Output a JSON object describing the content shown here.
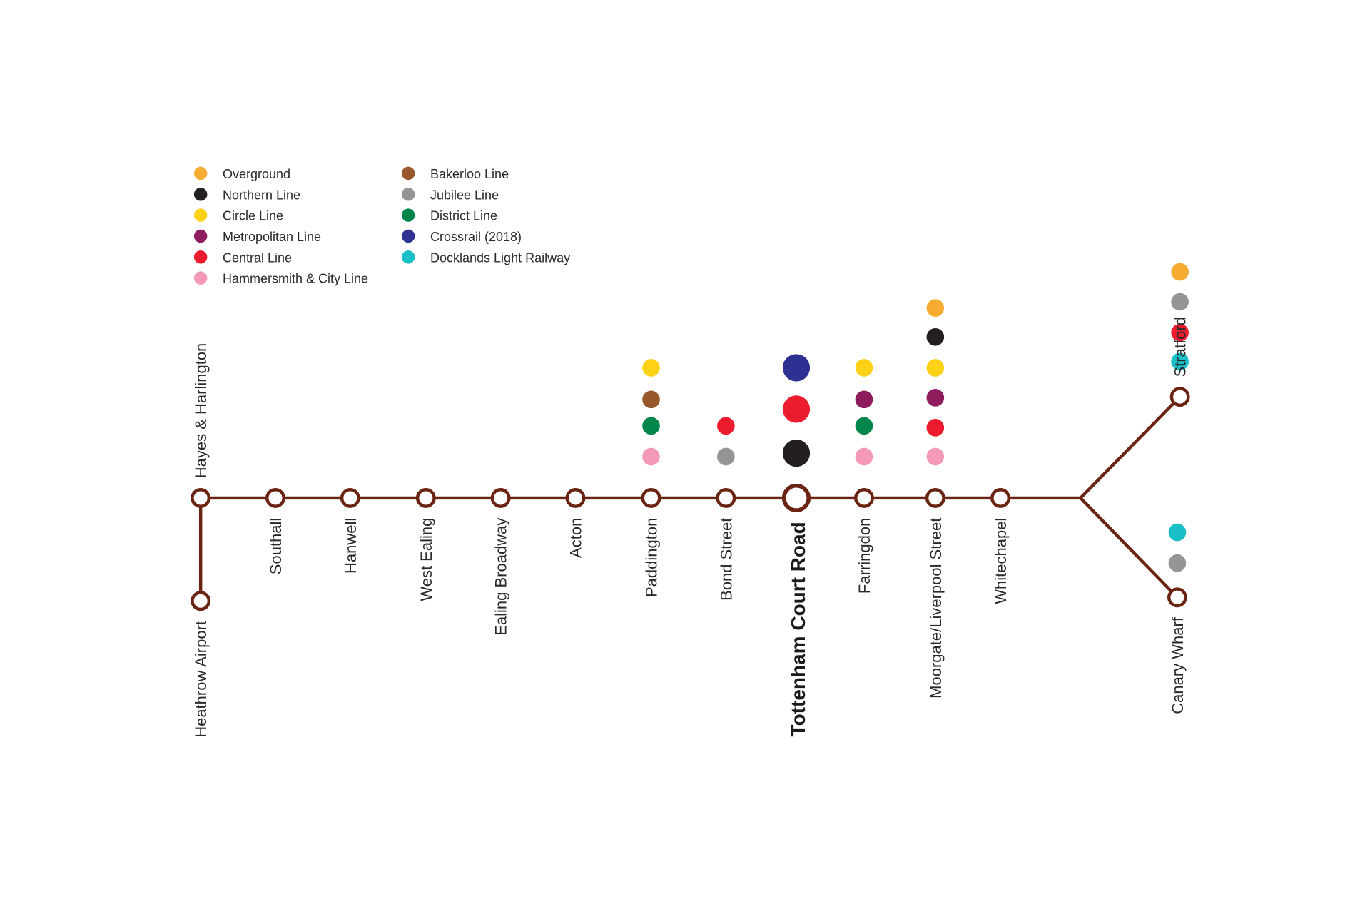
{
  "line_color": "#6b2412",
  "legend": [
    {
      "label": "Overground",
      "color": "#f6ac33"
    },
    {
      "label": "Northern Line",
      "color": "#231f20"
    },
    {
      "label": "Circle Line",
      "color": "#fcd116"
    },
    {
      "label": "Metropolitan Line",
      "color": "#8f1d5e"
    },
    {
      "label": "Central Line",
      "color": "#ec1c2e"
    },
    {
      "label": "Hammersmith & City Line",
      "color": "#f49ab8"
    },
    {
      "label": "Bakerloo Line",
      "color": "#98582c"
    },
    {
      "label": "Jubilee Line",
      "color": "#959595"
    },
    {
      "label": "District Line",
      "color": "#00864a"
    },
    {
      "label": "Crossrail (2018)",
      "color": "#2e3192"
    },
    {
      "label": "Docklands Light Railway",
      "color": "#19bec6"
    }
  ],
  "stations": [
    {
      "name": "Hayes & Harlington",
      "interchanges": []
    },
    {
      "name": "Heathrow Airport",
      "interchanges": []
    },
    {
      "name": "Southall",
      "interchanges": []
    },
    {
      "name": "Hanwell",
      "interchanges": []
    },
    {
      "name": "West Ealing",
      "interchanges": []
    },
    {
      "name": "Ealing Broadway",
      "interchanges": []
    },
    {
      "name": "Acton",
      "interchanges": []
    },
    {
      "name": "Paddington",
      "interchanges": [
        "Circle Line",
        "Bakerloo Line",
        "District Line",
        "Hammersmith & City Line"
      ]
    },
    {
      "name": "Bond Street",
      "interchanges": [
        "Central Line",
        "Jubilee Line"
      ]
    },
    {
      "name": "Tottenham Court Road",
      "major": true,
      "interchanges": [
        "Crossrail (2018)",
        "Central Line",
        "Northern Line"
      ]
    },
    {
      "name": "Farringdon",
      "interchanges": [
        "Circle Line",
        "Metropolitan Line",
        "District Line",
        "Hammersmith & City Line"
      ]
    },
    {
      "name": "Moorgate/Liverpool Street",
      "interchanges": [
        "Overground",
        "Northern Line",
        "Circle Line",
        "Metropolitan Line",
        "Central Line",
        "Hammersmith & City Line"
      ]
    },
    {
      "name": "Whitechapel",
      "interchanges": []
    },
    {
      "name": "Stratford",
      "interchanges": [
        "Overground",
        "Jubilee Line",
        "Central Line",
        "Docklands Light Railway"
      ]
    },
    {
      "name": "Canary Wharf",
      "interchanges": [
        "Docklands Light Railway",
        "Jubilee Line"
      ]
    }
  ]
}
